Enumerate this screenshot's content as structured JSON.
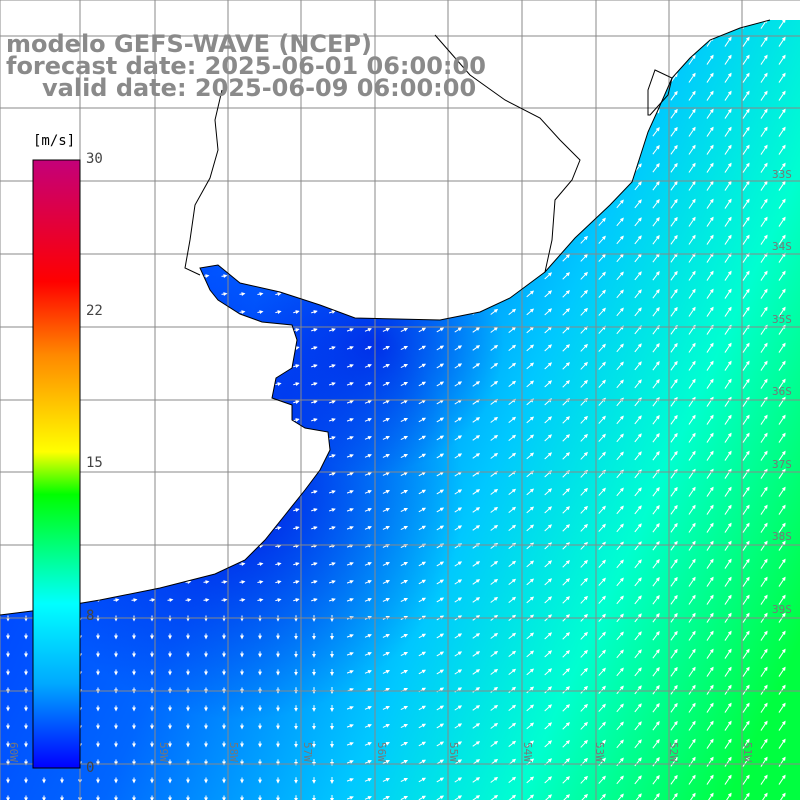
{
  "title": {
    "line1": "modelo GEFS-WAVE (NCEP)",
    "line2": "forecast date: 2025-06-01 06:00:00",
    "line3": "valid date: 2025-06-09 06:00:00"
  },
  "colorbar": {
    "unit": "[m/s]",
    "ticks": [
      {
        "value": 30,
        "label": "30"
      },
      {
        "value": 22,
        "label": "22"
      },
      {
        "value": 15,
        "label": "15"
      },
      {
        "value": 8,
        "label": "8"
      },
      {
        "value": 0,
        "label": "0"
      }
    ],
    "colors": [
      "#0000ff",
      "#00aaff",
      "#00ffff",
      "#00ff00",
      "#ffff00",
      "#ff8800",
      "#ff0000",
      "#d0006a"
    ]
  },
  "map": {
    "longitudes": [
      "60W",
      "59W",
      "58W",
      "57W",
      "56W",
      "55W",
      "54W",
      "53W",
      "52W",
      "51W"
    ],
    "latitudes": [
      "33S",
      "34S",
      "35S",
      "36S",
      "37S",
      "38S",
      "39S"
    ],
    "land_color": "#ffffff",
    "grid_color": "#888888",
    "coast_color": "#000000",
    "arrow_color": "#ffffff"
  }
}
